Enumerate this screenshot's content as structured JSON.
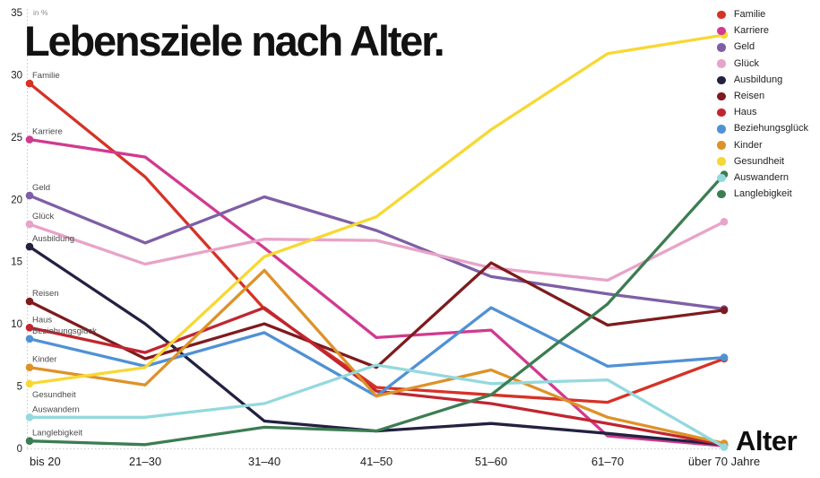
{
  "title": "Lebensziele nach Alter.",
  "y_axis": {
    "unit_label": "in %",
    "ticks": [
      0,
      5,
      10,
      15,
      20,
      25,
      30,
      35
    ]
  },
  "x_axis": {
    "label": "Alter"
  },
  "chart_data": {
    "type": "line",
    "title": "Lebensziele nach Alter.",
    "ylabel": "in %",
    "xlabel": "Alter",
    "ylim": [
      0,
      35
    ],
    "grid": false,
    "legend_position": "top-right",
    "categories": [
      "bis 20",
      "21–30",
      "31–40",
      "41–50",
      "51–60",
      "61–70",
      "über 70 Jahre"
    ],
    "series": [
      {
        "name": "Familie",
        "color": "#d63226",
        "values": [
          29.3,
          21.8,
          11.2,
          4.9,
          4.3,
          3.7,
          7.2
        ]
      },
      {
        "name": "Karriere",
        "color": "#d13a8f",
        "values": [
          24.8,
          23.4,
          16.1,
          8.9,
          9.5,
          1.0,
          0.2
        ]
      },
      {
        "name": "Geld",
        "color": "#7e5fa5",
        "values": [
          20.3,
          16.5,
          20.2,
          17.5,
          13.8,
          12.4,
          11.2
        ]
      },
      {
        "name": "Glück",
        "color": "#e8a3c8",
        "values": [
          18.0,
          14.8,
          16.8,
          16.7,
          14.5,
          13.5,
          18.2
        ]
      },
      {
        "name": "Ausbildung",
        "color": "#232140",
        "values": [
          16.2,
          10.0,
          2.2,
          1.4,
          2.0,
          1.2,
          0.3
        ]
      },
      {
        "name": "Reisen",
        "color": "#7e1b1e",
        "values": [
          11.8,
          7.2,
          10.0,
          6.5,
          14.9,
          9.9,
          11.1
        ]
      },
      {
        "name": "Haus",
        "color": "#c02630",
        "values": [
          9.7,
          7.7,
          11.3,
          4.6,
          3.6,
          2.0,
          0.3
        ]
      },
      {
        "name": "Beziehungsglück",
        "color": "#5091d4",
        "values": [
          8.8,
          6.6,
          9.3,
          4.2,
          11.3,
          6.6,
          7.3
        ]
      },
      {
        "name": "Kinder",
        "color": "#dd9229",
        "values": [
          6.5,
          5.1,
          14.3,
          4.2,
          6.3,
          2.5,
          0.4
        ]
      },
      {
        "name": "Gesundheit",
        "color": "#f7d833",
        "values": [
          5.2,
          6.5,
          15.4,
          18.6,
          25.6,
          31.7,
          33.2
        ]
      },
      {
        "name": "Auswandern",
        "color": "#94d9de",
        "values": [
          2.5,
          2.5,
          3.6,
          6.7,
          5.2,
          5.5,
          0.1
        ]
      },
      {
        "name": "Langlebigkeit",
        "color": "#3c7d52",
        "values": [
          0.6,
          0.3,
          1.7,
          1.4,
          4.3,
          11.6,
          22.0
        ]
      }
    ]
  }
}
